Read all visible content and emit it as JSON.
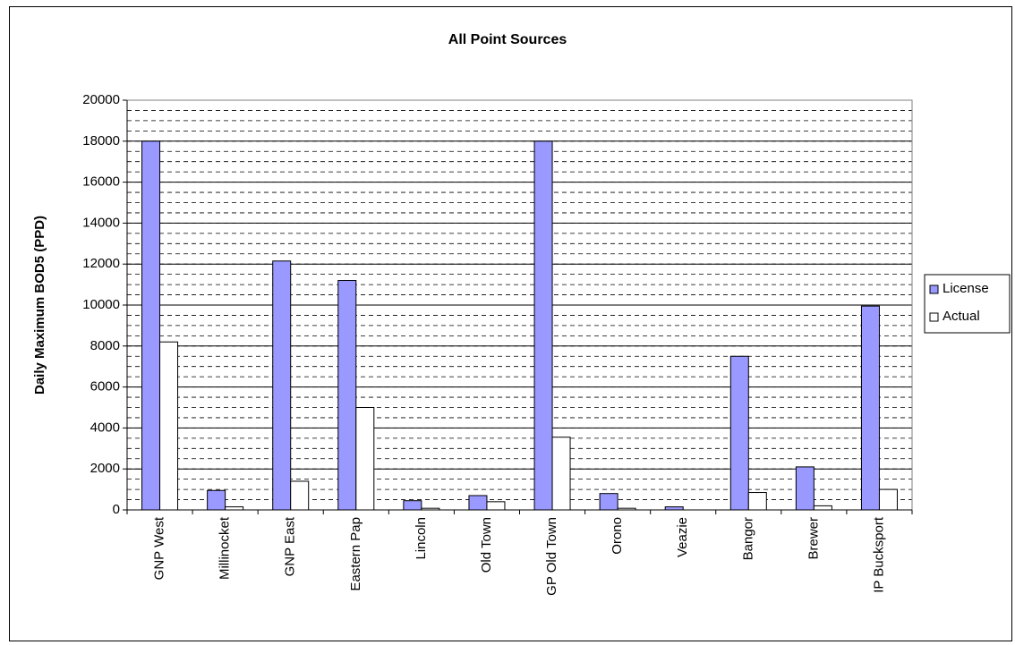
{
  "chart_data": {
    "type": "bar",
    "title": "All Point Sources",
    "y_label": "Daily Maximum BOD5 (PPD)",
    "categories": [
      "GNP West",
      "Millinocket",
      "GNP East",
      "Eastern Pap",
      "Lincoln",
      "Old Town",
      "GP Old Town",
      "Orono",
      "Veazie",
      "Bangor",
      "Brewer",
      "IP Bucksport"
    ],
    "series": [
      {
        "name": "License",
        "color": "#9999ff",
        "values": [
          18000,
          950,
          12150,
          11200,
          450,
          700,
          18000,
          800,
          150,
          7500,
          2100,
          9950
        ]
      },
      {
        "name": "Actual",
        "color": "#ffffff",
        "values": [
          8200,
          150,
          1400,
          5000,
          80,
          400,
          3550,
          80,
          0,
          850,
          200,
          1000
        ]
      }
    ],
    "ylim": [
      0,
      20000
    ],
    "yticks": [
      0,
      2000,
      4000,
      6000,
      8000,
      10000,
      12000,
      14000,
      16000,
      18000,
      20000
    ],
    "grid": true,
    "minor_grid_interval": 500,
    "legend": "right"
  }
}
